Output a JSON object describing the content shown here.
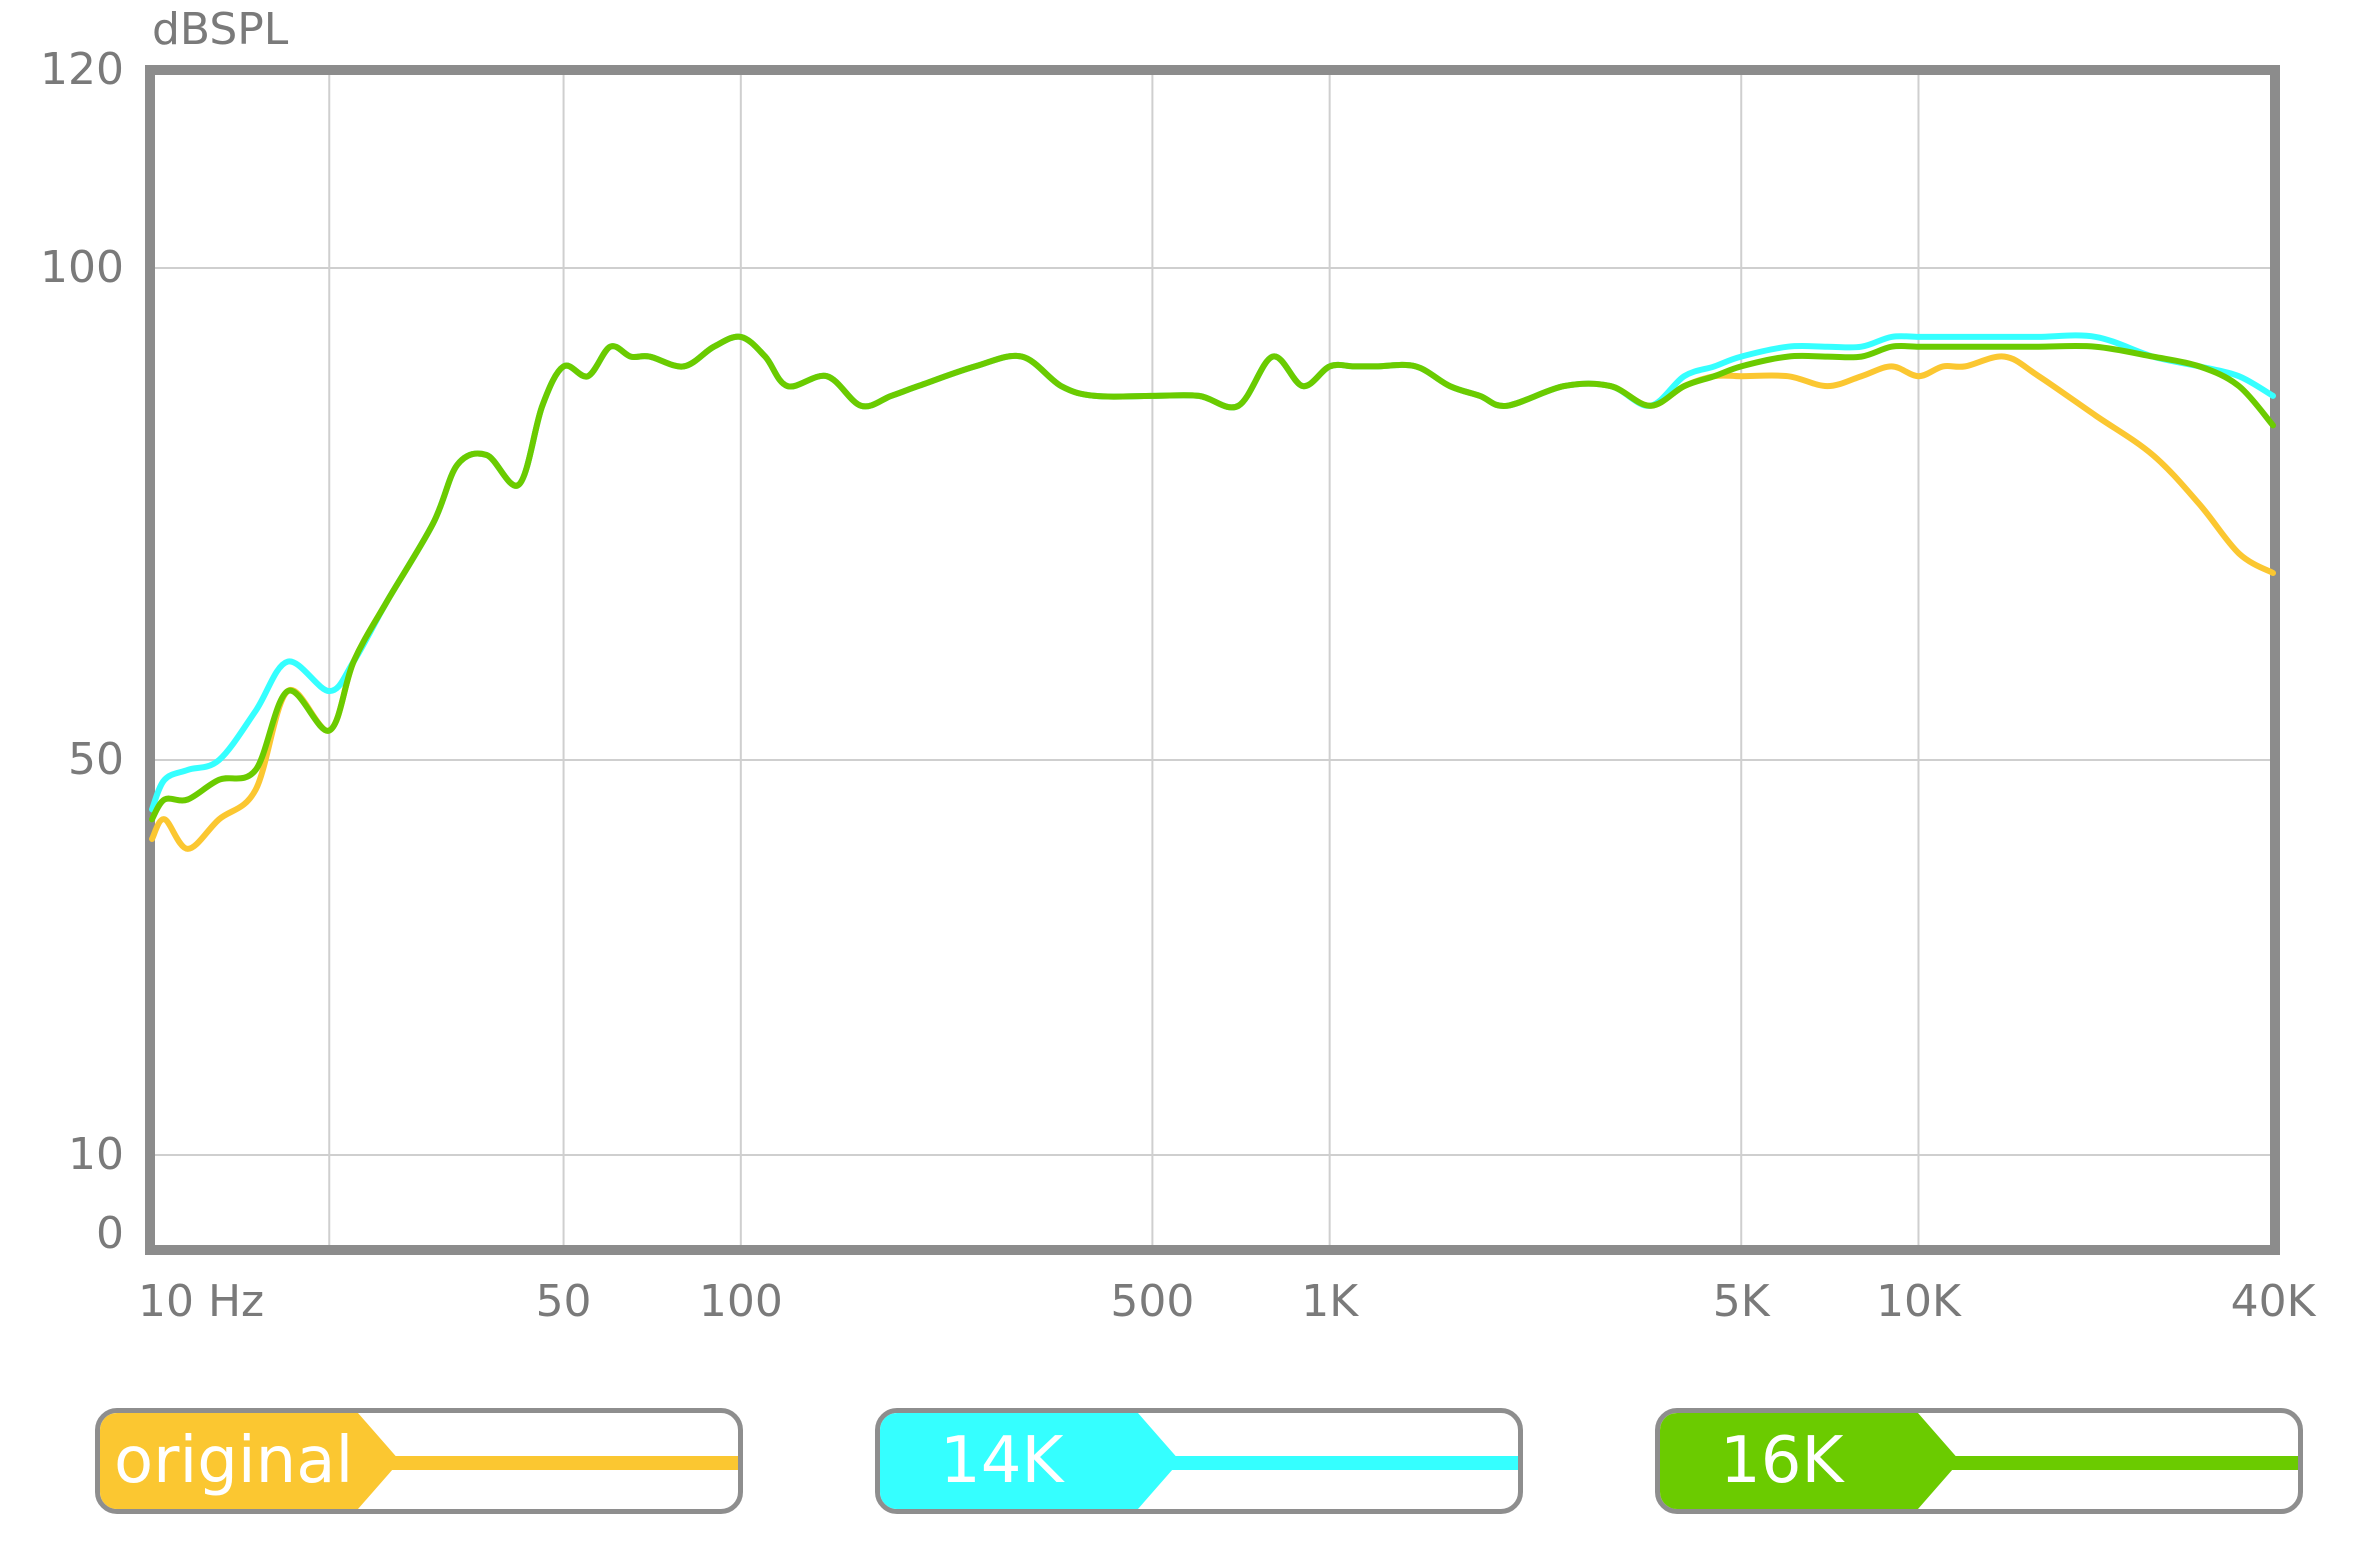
{
  "chart_data": {
    "type": "line",
    "ylabel": "dBSPL",
    "x_scale": "log",
    "xlim": [
      10,
      40000
    ],
    "ylim": [
      0,
      120
    ],
    "grid": true,
    "x_ticks": [
      {
        "value": 10,
        "label": "10  Hz"
      },
      {
        "value": 20,
        "label": ""
      },
      {
        "value": 50,
        "label": "50"
      },
      {
        "value": 100,
        "label": "100"
      },
      {
        "value": 500,
        "label": "500"
      },
      {
        "value": 1000,
        "label": "1K"
      },
      {
        "value": 5000,
        "label": "5K"
      },
      {
        "value": 10000,
        "label": "10K"
      },
      {
        "value": 40000,
        "label": "40K"
      }
    ],
    "y_ticks": [
      {
        "value": 0,
        "label": "0"
      },
      {
        "value": 10,
        "label": "10"
      },
      {
        "value": 50,
        "label": "50"
      },
      {
        "value": 100,
        "label": "100"
      },
      {
        "value": 120,
        "label": "120"
      }
    ],
    "legend_position": "bottom",
    "series": [
      {
        "name": "original",
        "color": "#fbc731",
        "x": [
          10,
          10.5,
          11.5,
          13,
          15,
          17,
          20,
          22,
          25,
          30,
          33,
          37,
          42,
          46,
          50,
          55,
          60,
          65,
          70,
          80,
          90,
          100,
          110,
          120,
          140,
          160,
          180,
          200,
          250,
          300,
          350,
          400,
          500,
          600,
          700,
          800,
          900,
          1000,
          1100,
          1200,
          1400,
          1600,
          1800,
          2000,
          2500,
          3000,
          3500,
          4000,
          4500,
          5000,
          6000,
          7000,
          8000,
          9000,
          10000,
          11000,
          12000,
          14000,
          16000,
          20000,
          25000,
          30000,
          35000,
          40000
        ],
        "y": [
          42,
          44,
          41,
          44,
          47,
          57,
          53,
          60,
          66,
          74,
          80,
          81,
          78,
          86,
          90,
          89,
          92,
          91,
          91,
          90,
          92,
          93,
          91,
          88,
          89,
          86,
          87,
          88,
          90,
          91,
          88,
          87,
          87,
          87,
          86,
          91,
          88,
          90,
          90,
          90,
          90,
          88,
          87,
          86,
          88,
          88,
          86,
          88,
          89,
          89,
          89,
          88,
          89,
          90,
          89,
          90,
          90,
          91,
          89,
          85,
          81,
          76,
          71,
          69
        ]
      },
      {
        "name": "14K",
        "color": "#35ffff",
        "x": [
          10,
          10.5,
          11.5,
          13,
          15,
          17,
          20,
          22,
          25,
          30,
          33,
          37,
          42,
          46,
          50,
          55,
          60,
          65,
          70,
          80,
          90,
          100,
          110,
          120,
          140,
          160,
          180,
          200,
          250,
          300,
          350,
          400,
          500,
          600,
          700,
          800,
          900,
          1000,
          1100,
          1200,
          1400,
          1600,
          1800,
          2000,
          2500,
          3000,
          3500,
          4000,
          4500,
          5000,
          6000,
          7000,
          8000,
          9000,
          10000,
          11000,
          12000,
          14000,
          16000,
          20000,
          25000,
          30000,
          35000,
          40000
        ],
        "y": [
          45,
          48,
          49,
          50,
          55,
          60,
          57,
          60,
          66,
          74,
          80,
          81,
          78,
          86,
          90,
          89,
          92,
          91,
          91,
          90,
          92,
          93,
          91,
          88,
          89,
          86,
          87,
          88,
          90,
          91,
          88,
          87,
          87,
          87,
          86,
          91,
          88,
          90,
          90,
          90,
          90,
          88,
          87,
          86,
          88,
          88,
          86,
          89,
          90,
          91,
          92,
          92,
          92,
          93,
          93,
          93,
          93,
          93,
          93,
          93,
          91,
          90,
          89,
          87
        ]
      },
      {
        "name": "16K",
        "color": "#6bcb00",
        "x": [
          10,
          10.5,
          11.5,
          13,
          15,
          17,
          20,
          22,
          25,
          30,
          33,
          37,
          42,
          46,
          50,
          55,
          60,
          65,
          70,
          80,
          90,
          100,
          110,
          120,
          140,
          160,
          180,
          200,
          250,
          300,
          350,
          400,
          500,
          600,
          700,
          800,
          900,
          1000,
          1100,
          1200,
          1400,
          1600,
          1800,
          2000,
          2500,
          3000,
          3500,
          4000,
          4500,
          5000,
          6000,
          7000,
          8000,
          9000,
          10000,
          11000,
          12000,
          14000,
          16000,
          20000,
          25000,
          30000,
          35000,
          40000
        ],
        "y": [
          44,
          46,
          46,
          48,
          49,
          57,
          53,
          60,
          66,
          74,
          80,
          81,
          78,
          86,
          90,
          89,
          92,
          91,
          91,
          90,
          92,
          93,
          91,
          88,
          89,
          86,
          87,
          88,
          90,
          91,
          88,
          87,
          87,
          87,
          86,
          91,
          88,
          90,
          90,
          90,
          90,
          88,
          87,
          86,
          88,
          88,
          86,
          88,
          89,
          90,
          91,
          91,
          91,
          92,
          92,
          92,
          92,
          92,
          92,
          92,
          91,
          90,
          88,
          84
        ]
      }
    ]
  }
}
